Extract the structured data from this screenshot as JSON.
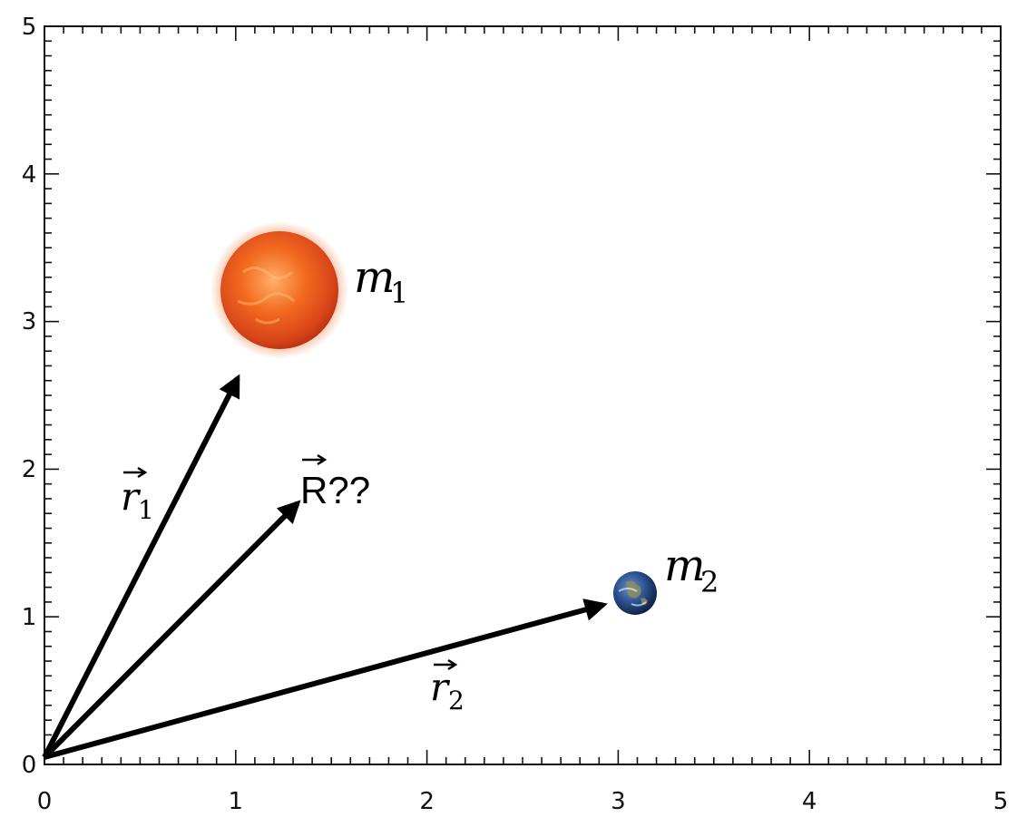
{
  "axes": {
    "xlim": [
      0,
      5
    ],
    "ylim": [
      0,
      5
    ],
    "x_ticks": [
      "0",
      "1",
      "2",
      "3",
      "4",
      "5"
    ],
    "y_ticks": [
      "0",
      "1",
      "2",
      "3",
      "4",
      "5"
    ],
    "minor_per_major": 10
  },
  "bodies": {
    "sun": {
      "label_base": "m",
      "label_sub": "1",
      "center": [
        1.22,
        3.22
      ],
      "icon": "sun-icon"
    },
    "earth": {
      "label_base": "m",
      "label_sub": "2",
      "center": [
        3.09,
        1.18
      ],
      "icon": "earth-icon"
    }
  },
  "vectors": {
    "r1": {
      "label_base": "r",
      "label_sub": "1",
      "from": [
        0,
        0
      ],
      "to": [
        1.02,
        2.68
      ]
    },
    "R": {
      "label": "R??",
      "from": [
        0,
        0
      ],
      "to": [
        1.33,
        1.82
      ]
    },
    "r2": {
      "label_base": "r",
      "label_sub": "2",
      "from": [
        0,
        0
      ],
      "to": [
        2.97,
        1.1
      ]
    }
  },
  "colors": {
    "axis": "#111111",
    "vector": "#000000",
    "sun_core": "#f26a1f",
    "sun_edge": "#d8441a",
    "earth_ocean": "#2a4f8e",
    "earth_land": "#8a8f5a"
  }
}
